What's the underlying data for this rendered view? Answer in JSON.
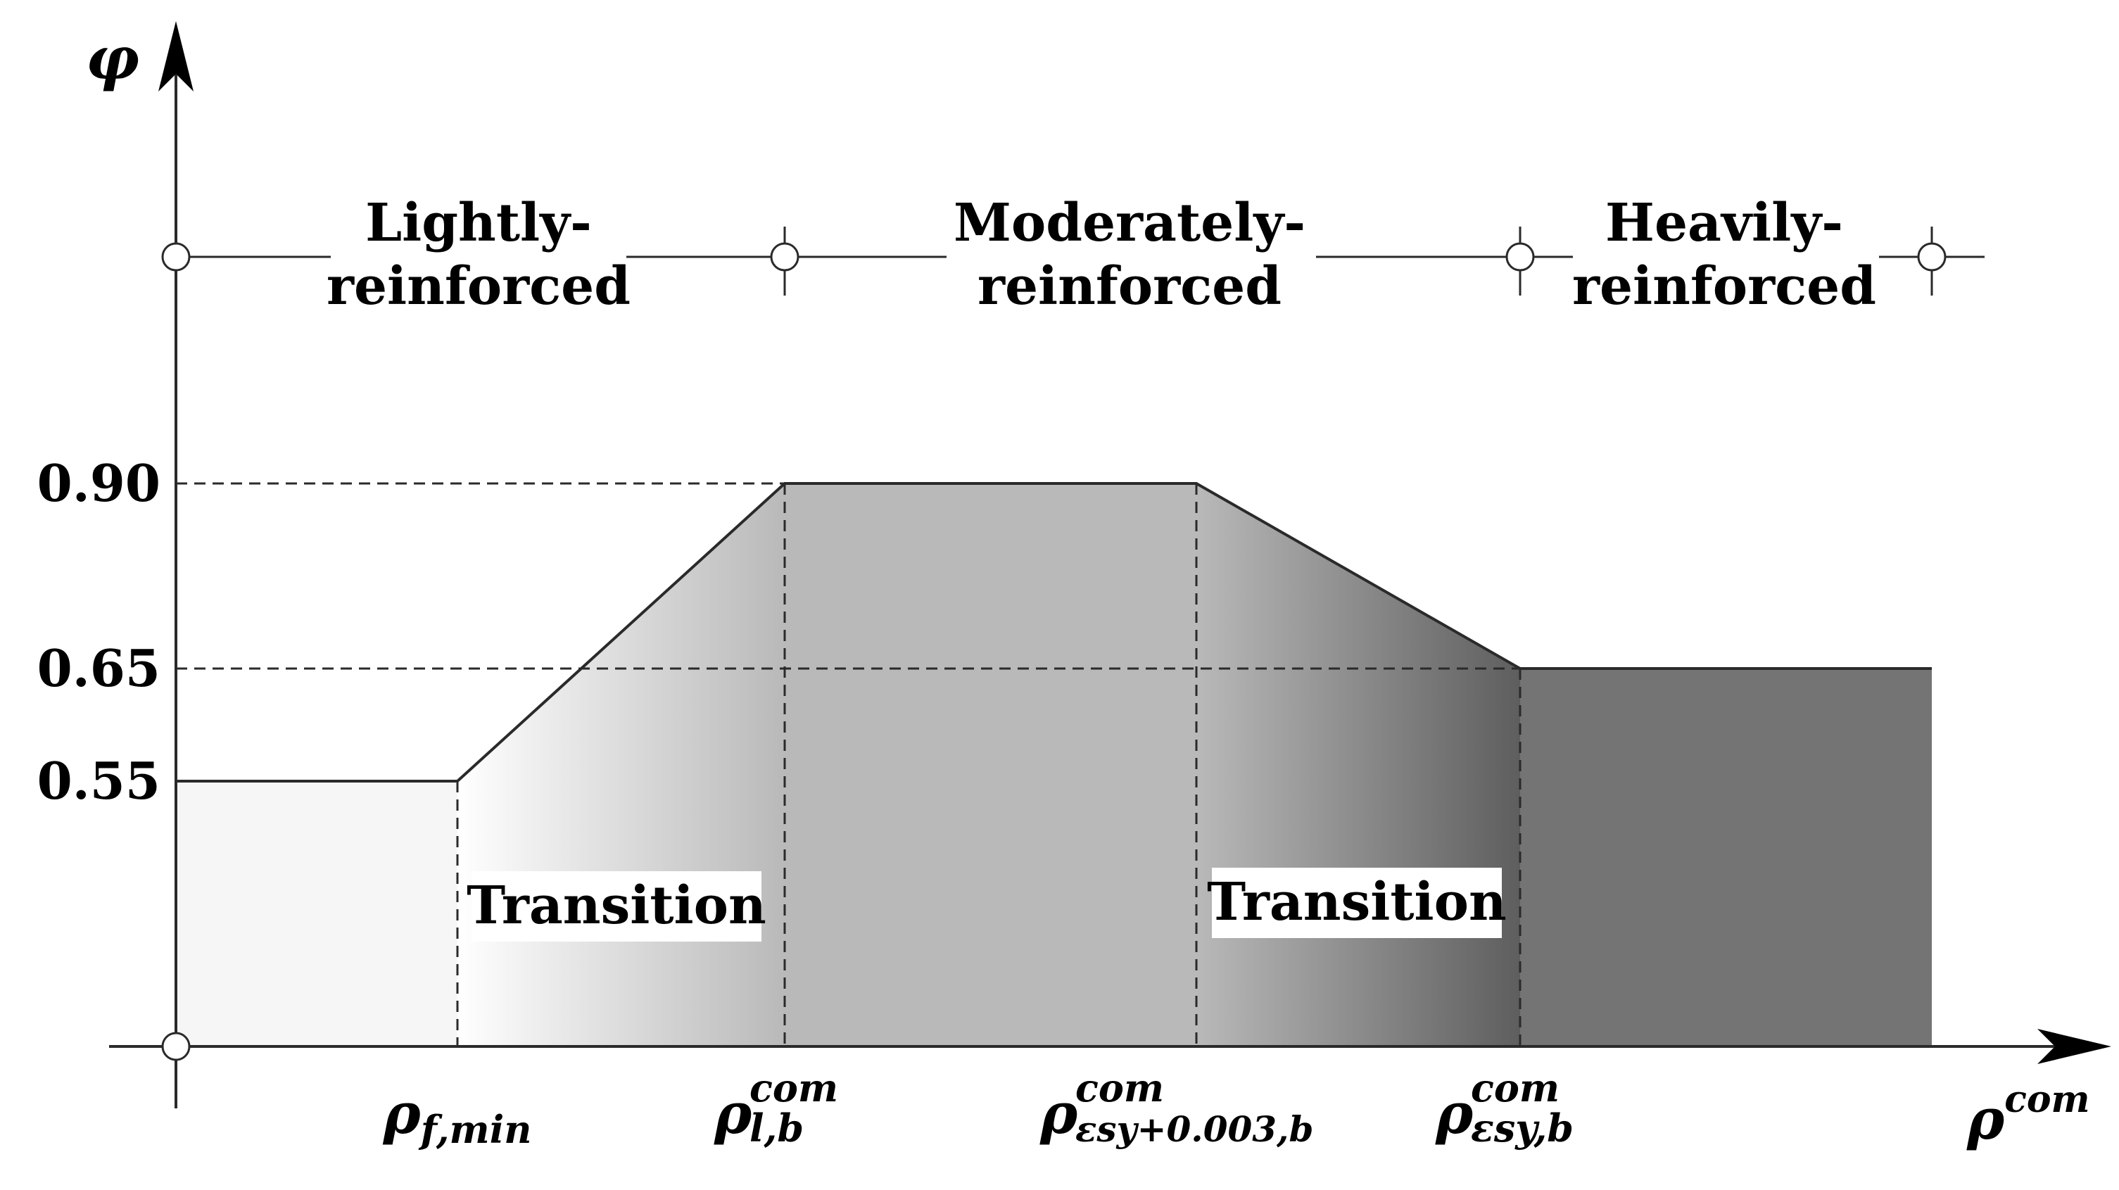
{
  "axes": {
    "y_label": "φ",
    "x_label_base": "ρ",
    "x_label_sup": "com"
  },
  "y_ticks": [
    {
      "label": "0.90",
      "value": 0.9
    },
    {
      "label": "0.65",
      "value": 0.65
    },
    {
      "label": "0.55",
      "value": 0.55
    }
  ],
  "regions": [
    {
      "line1": "Lightly-",
      "line2": "reinforced"
    },
    {
      "line1": "Moderately-",
      "line2": "reinforced"
    },
    {
      "line1": "Heavily-",
      "line2": "reinforced"
    }
  ],
  "transition_labels": [
    "Transition",
    "Transition"
  ],
  "x_ticks": [
    {
      "base": "ρ",
      "sub": "f,min",
      "sup": ""
    },
    {
      "base": "ρ",
      "sub": "l,b",
      "sup": "com"
    },
    {
      "base": "ρ",
      "sub": "εsy+0.003,b",
      "sup": "com"
    },
    {
      "base": "ρ",
      "sub": "εsy,b",
      "sup": "com"
    }
  ],
  "colors": {
    "light_fill": "#f7f6f6",
    "mid_fill": "#b9b9b9",
    "dark_fill": "#747474",
    "outline": "#2a2a2a"
  }
}
